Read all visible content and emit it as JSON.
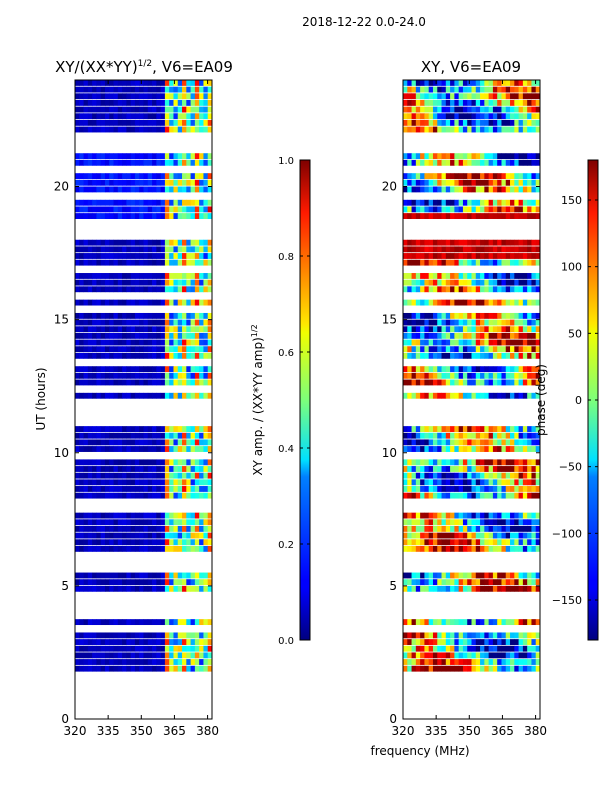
{
  "suptitle": "2018-12-22 0.0-24.0",
  "chart_data": [
    {
      "type": "heatmap",
      "title": "XY/(XX*YY)^{1/2}, V6=EA09",
      "title_main": "XY/(XX*YY)",
      "title_sup": "1/2",
      "title_suffix": ", V6=EA09",
      "xlabel": "frequency (MHz)",
      "ylabel": "UT (hours)",
      "xlim": [
        320,
        382
      ],
      "ylim": [
        0,
        24
      ],
      "xticks": [
        "320",
        "335",
        "350",
        "365",
        "380"
      ],
      "xtick_values": [
        320,
        335,
        350,
        365,
        380
      ],
      "yticks": [
        "0",
        "5",
        "10",
        "15",
        "20"
      ],
      "ytick_values": [
        0,
        5,
        10,
        15,
        20
      ],
      "colorbar": {
        "label": "XY amp. / (XX*YY amp)^{1/2}",
        "label_main": "XY amp. / (XX*YY amp)",
        "label_sup": "1/2",
        "range": [
          0.0,
          1.0
        ],
        "ticks": [
          "0.0",
          "0.2",
          "0.4",
          "0.6",
          "0.8",
          "1.0"
        ],
        "tick_values": [
          0.0,
          0.2,
          0.4,
          0.6,
          0.8,
          1.0
        ],
        "colormap": "jet"
      }
    },
    {
      "type": "heatmap",
      "title": "XY, V6=EA09",
      "xlabel": "frequency (MHz)",
      "ylabel": "",
      "xlim": [
        320,
        382
      ],
      "ylim": [
        0,
        24
      ],
      "xticks": [
        "320",
        "335",
        "350",
        "365",
        "380"
      ],
      "xtick_values": [
        320,
        335,
        350,
        365,
        380
      ],
      "yticks": [
        "0",
        "5",
        "10",
        "15",
        "20"
      ],
      "ytick_values": [
        0,
        5,
        10,
        15,
        20
      ],
      "colorbar": {
        "label": "phase (deg)",
        "range": [
          -180,
          180
        ],
        "ticks": [
          "−150",
          "−100",
          "−50",
          "0",
          "50",
          "100",
          "150"
        ],
        "tick_values": [
          -150,
          -100,
          -50,
          0,
          50,
          100,
          150
        ],
        "colormap": "jet"
      }
    }
  ],
  "colors": {
    "axis": "#000000",
    "background": "#ffffff"
  }
}
